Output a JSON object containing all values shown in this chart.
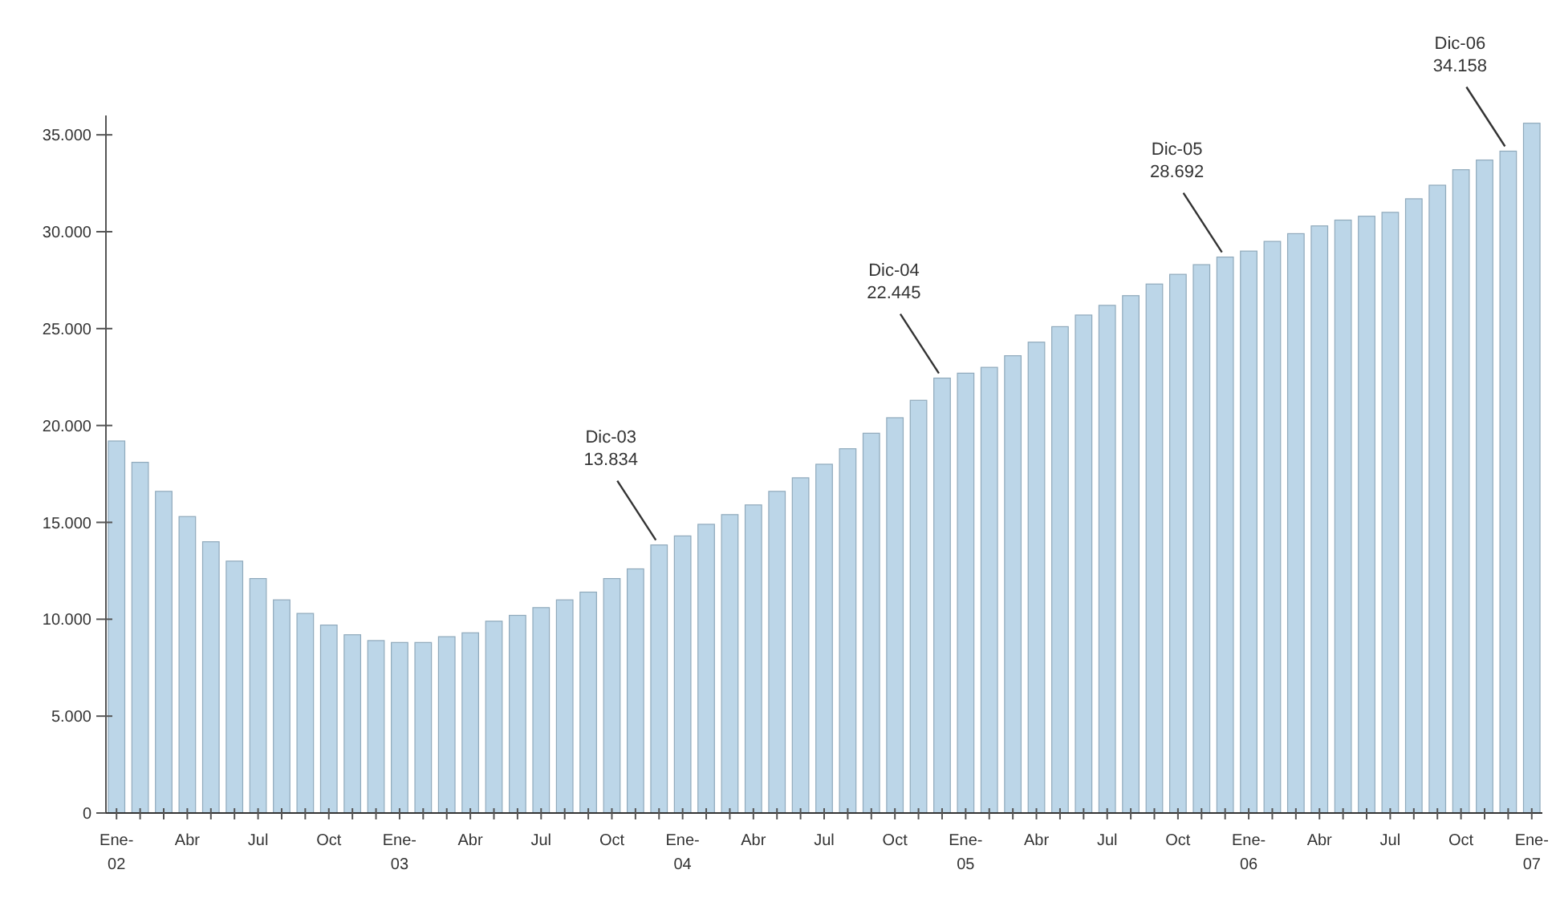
{
  "chart_data": {
    "type": "bar",
    "categories": [
      "Ene-02",
      null,
      null,
      "Abr",
      null,
      null,
      "Jul",
      null,
      null,
      "Oct",
      null,
      null,
      "Ene-03",
      null,
      null,
      "Abr",
      null,
      null,
      "Jul",
      null,
      null,
      "Oct",
      null,
      null,
      "Ene-04",
      null,
      null,
      "Abr",
      null,
      null,
      "Jul",
      null,
      null,
      "Oct",
      null,
      null,
      "Ene-05",
      null,
      null,
      "Abr",
      null,
      null,
      "Jul",
      null,
      null,
      "Oct",
      null,
      null,
      "Ene-06",
      null,
      null,
      "Abr",
      null,
      null,
      "Jul",
      null,
      null,
      "Oct",
      null,
      null,
      "Ene-07"
    ],
    "values": [
      19200,
      18100,
      16600,
      15300,
      14000,
      13000,
      12100,
      11000,
      10300,
      9700,
      9200,
      8900,
      8800,
      8800,
      9100,
      9300,
      9900,
      10200,
      10600,
      11000,
      11400,
      12100,
      12600,
      13834,
      14300,
      14900,
      15400,
      15900,
      16600,
      17300,
      18000,
      18800,
      19600,
      20400,
      21300,
      22445,
      22700,
      23000,
      23600,
      24300,
      25100,
      25700,
      26200,
      26700,
      27300,
      27800,
      28300,
      28692,
      29000,
      29500,
      29900,
      30300,
      30600,
      30800,
      31000,
      31700,
      32400,
      33200,
      33700,
      34158,
      35600
    ],
    "value_labels": [
      null,
      null,
      null,
      null,
      null,
      null,
      null,
      null,
      null,
      null,
      null,
      null,
      null,
      null,
      null,
      null,
      null,
      null,
      null,
      null,
      null,
      null,
      null,
      "Dic-03\n13.834",
      null,
      null,
      null,
      null,
      null,
      null,
      null,
      null,
      null,
      null,
      null,
      "Dic-04\n22.445",
      null,
      null,
      null,
      null,
      null,
      null,
      null,
      null,
      null,
      null,
      null,
      "Dic-05\n28.692",
      null,
      null,
      null,
      null,
      null,
      null,
      null,
      null,
      null,
      null,
      null,
      "Dic-06\n34.158",
      null
    ],
    "color": "#bcd6e8",
    "ylim": [
      0,
      36000
    ],
    "yticks": [
      {
        "value": 0,
        "label": "0"
      },
      {
        "value": 5000,
        "label": "5.000"
      },
      {
        "value": 10000,
        "label": "10.000"
      },
      {
        "value": 15000,
        "label": "15.000"
      },
      {
        "value": 20000,
        "label": "20.000"
      },
      {
        "value": 25000,
        "label": "25.000"
      },
      {
        "value": 30000,
        "label": "30.000"
      },
      {
        "value": 35000,
        "label": "35.000"
      }
    ],
    "grid": false
  }
}
